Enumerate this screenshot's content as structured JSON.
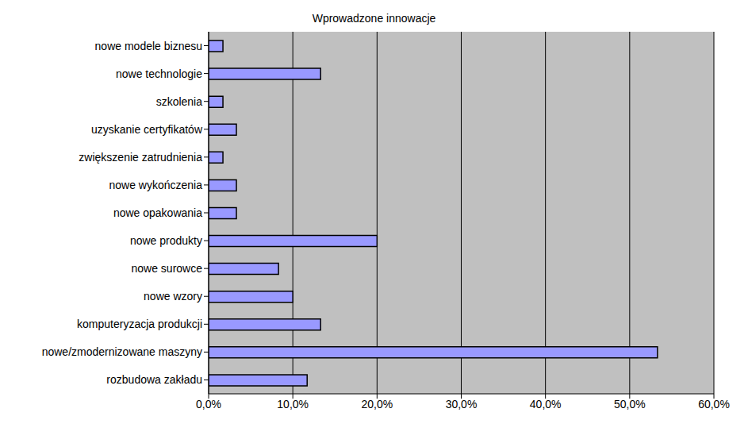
{
  "chart_data": {
    "type": "bar",
    "title": "Wprowadzone innowacje",
    "orientation": "horizontal",
    "categories": [
      "nowe modele biznesu",
      "nowe technologie",
      "szkolenia",
      "uzyskanie certyfikatów",
      "zwiększenie zatrudnienia",
      "nowe wykończenia",
      "nowe opakowania",
      "nowe produkty",
      "nowe surowce",
      "nowe wzory",
      "komputeryzacja produkcji",
      "nowe/zmodernizowane maszyny",
      "rozbudowa zakładu"
    ],
    "values": [
      1.7,
      13.3,
      1.7,
      3.3,
      1.7,
      3.3,
      3.3,
      20.0,
      8.3,
      10.0,
      13.3,
      53.3,
      11.7
    ],
    "color": "#9999ff",
    "xlim": [
      0,
      60
    ],
    "xticks": [
      {
        "value": 0,
        "label": "0,0%"
      },
      {
        "value": 10,
        "label": "10,0%"
      },
      {
        "value": 20,
        "label": "20,0%"
      },
      {
        "value": 30,
        "label": "30,0%"
      },
      {
        "value": 40,
        "label": "40,0%"
      },
      {
        "value": 50,
        "label": "50,0%"
      },
      {
        "value": 60,
        "label": "60,0%"
      }
    ],
    "grid": true
  }
}
